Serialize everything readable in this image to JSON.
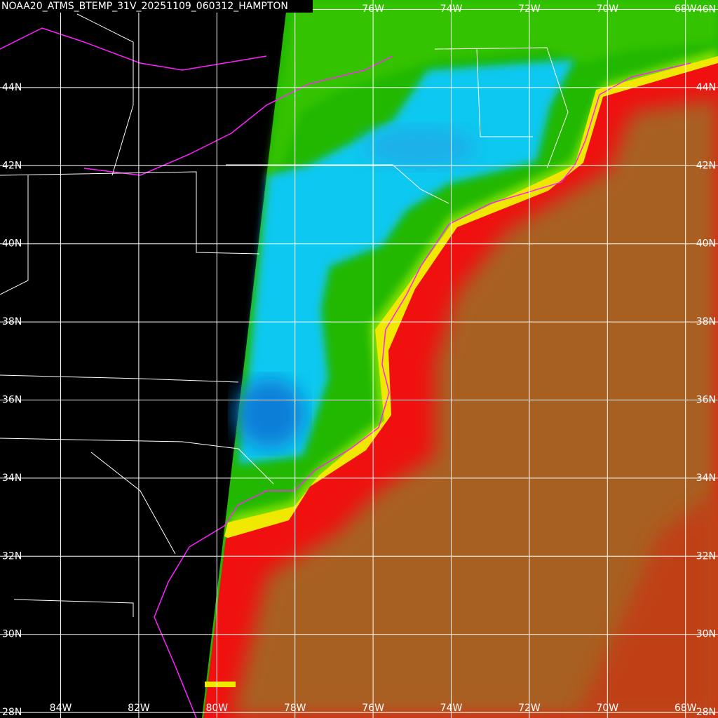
{
  "map": {
    "title": "NOAA20_ATMS_BTEMP_31V_20251109_060312_HAMPTON",
    "lon_labels_top": [
      "76W",
      "74W",
      "72W",
      "70W",
      "68W"
    ],
    "lon_labels_bottom": [
      "84W",
      "82W",
      "80W",
      "78W",
      "76W",
      "74W",
      "72W",
      "70W",
      "68W"
    ],
    "lat_labels_left": [
      "44N",
      "42N",
      "40N",
      "38N",
      "36N",
      "34N",
      "32N",
      "30N",
      "28N"
    ],
    "lat_labels_right": [
      "46N",
      "44N",
      "42N",
      "40N",
      "38N",
      "36N",
      "34N",
      "32N",
      "30N",
      "28N"
    ]
  }
}
